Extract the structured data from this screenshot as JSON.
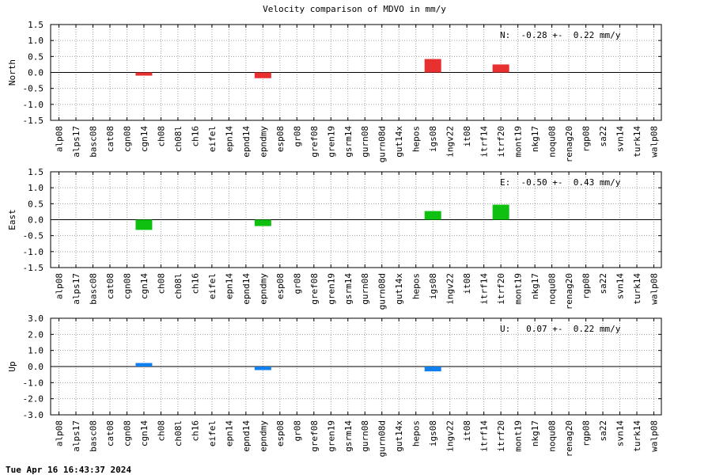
{
  "title": "Velocity comparison of MDVO in mm/y",
  "timestamp": "Tue Apr 16 16:43:37 2024",
  "chart_data": [
    {
      "type": "bar",
      "ylabel": "North",
      "ylim": [
        -1.5,
        1.5
      ],
      "yticks": [
        "1.5",
        "1.0",
        "0.5",
        "0.0",
        "-0.5",
        "-1.0",
        "-1.5"
      ],
      "grid": true,
      "color": "#e83030",
      "stat_label": "N:  -0.28 +-  0.22 mm/y",
      "stat_position": "top-right",
      "categories": [
        "alp08",
        "alps17",
        "basc08",
        "cat08",
        "cgn08",
        "cgn14",
        "ch08",
        "ch08l",
        "ch16",
        "eifel",
        "epn14",
        "epnd14",
        "epndmy",
        "esp08",
        "gr08",
        "gref08",
        "gren19",
        "gsrm14",
        "gurn08",
        "gurn08d",
        "gut14x",
        "hepos",
        "igs08",
        "ingv22",
        "it08",
        "itrf14",
        "itrf20",
        "mont19",
        "nkg17",
        "noqu08",
        "renag20",
        "rgp08",
        "sa22",
        "svn14",
        "turk14",
        "walp08"
      ],
      "values": [
        null,
        null,
        null,
        null,
        null,
        -0.1,
        null,
        null,
        null,
        null,
        null,
        null,
        -0.18,
        null,
        null,
        null,
        null,
        null,
        null,
        null,
        null,
        null,
        0.42,
        null,
        null,
        null,
        0.25,
        null,
        null,
        null,
        null,
        null,
        null,
        null,
        null,
        null
      ]
    },
    {
      "type": "bar",
      "ylabel": "East",
      "ylim": [
        -1.5,
        1.5
      ],
      "yticks": [
        "1.5",
        "1.0",
        "0.5",
        "0.0",
        "-0.5",
        "-1.0",
        "-1.5"
      ],
      "grid": true,
      "color": "#10c010",
      "stat_label": "E:  -0.50 +-  0.43 mm/y",
      "stat_position": "top-right",
      "categories": [
        "alp08",
        "alps17",
        "basc08",
        "cat08",
        "cgn08",
        "cgn14",
        "ch08",
        "ch08l",
        "ch16",
        "eifel",
        "epn14",
        "epnd14",
        "epndmy",
        "esp08",
        "gr08",
        "gref08",
        "gren19",
        "gsrm14",
        "gurn08",
        "gurn08d",
        "gut14x",
        "hepos",
        "igs08",
        "ingv22",
        "it08",
        "itrf14",
        "itrf20",
        "mont19",
        "nkg17",
        "noqu08",
        "renag20",
        "rgp08",
        "sa22",
        "svn14",
        "turk14",
        "walp08"
      ],
      "values": [
        null,
        null,
        null,
        null,
        null,
        -0.32,
        null,
        null,
        null,
        null,
        null,
        null,
        -0.2,
        null,
        null,
        null,
        null,
        null,
        null,
        null,
        null,
        null,
        0.27,
        null,
        null,
        null,
        0.47,
        null,
        null,
        null,
        null,
        null,
        null,
        null,
        null,
        null
      ]
    },
    {
      "type": "bar",
      "ylabel": "Up",
      "ylim": [
        -3.0,
        3.0
      ],
      "yticks": [
        "3.0",
        "2.0",
        "1.0",
        "0.0",
        "-1.0",
        "-2.0",
        "-3.0"
      ],
      "grid": true,
      "color": "#1080f0",
      "stat_label": "U:   0.07 +-  0.22 mm/y",
      "stat_position": "top-right",
      "categories": [
        "alp08",
        "alps17",
        "basc08",
        "cat08",
        "cgn08",
        "cgn14",
        "ch08",
        "ch08l",
        "ch16",
        "eifel",
        "epn14",
        "epnd14",
        "epndmy",
        "esp08",
        "gr08",
        "gref08",
        "gren19",
        "gsrm14",
        "gurn08",
        "gurn08d",
        "gut14x",
        "hepos",
        "igs08",
        "ingv22",
        "it08",
        "itrf14",
        "itrf20",
        "mont19",
        "nkg17",
        "noqu08",
        "renag20",
        "rgp08",
        "sa22",
        "svn14",
        "turk14",
        "walp08"
      ],
      "values": [
        null,
        null,
        null,
        null,
        null,
        0.22,
        null,
        null,
        null,
        null,
        null,
        null,
        -0.22,
        null,
        null,
        null,
        null,
        null,
        null,
        null,
        null,
        null,
        -0.3,
        null,
        null,
        null,
        null,
        null,
        null,
        null,
        null,
        null,
        null,
        null,
        null,
        null
      ]
    }
  ]
}
